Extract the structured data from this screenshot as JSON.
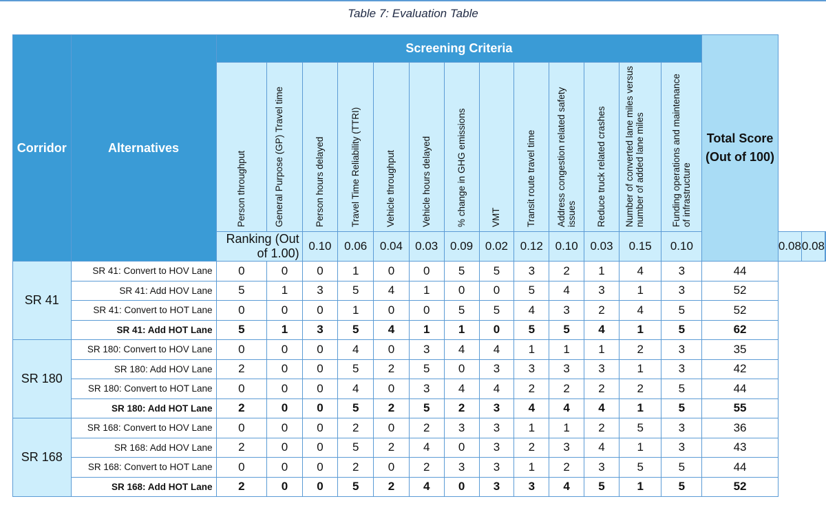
{
  "caption": "Table 7: Evaluation Table",
  "headers": {
    "corridor": "Corridor",
    "alternatives": "Alternatives",
    "screening_criteria": "Screening Criteria",
    "total_line1": "Total Score",
    "total_line2": "(Out of 100)"
  },
  "criteria": [
    "Person throughput",
    "General Purpose (GP) Travel time",
    "Person hours delayed",
    "Travel Time Reliability (TTRI)",
    "Vehicle throughput",
    "Vehicle hours delayed",
    "% change in GHG emissions",
    "VMT",
    "Transit route travel time",
    "Address congestion related safety issues",
    "Reduce truck related crashes",
    "Number of converted lane miles versus number of added lane miles",
    "Funding operations and maintenance of infrastructure"
  ],
  "ranking": {
    "label": "Ranking (Out of 1.00)",
    "values": [
      "0.10",
      "0.06",
      "0.04",
      "0.03",
      "0.09",
      "0.02",
      "0.12",
      "0.10",
      "0.03",
      "0.15",
      "0.10",
      "0.08",
      "0.08"
    ]
  },
  "corridors": [
    {
      "name": "SR 41",
      "rows": [
        {
          "alt": "SR 41: Convert to HOV Lane",
          "scores": [
            "0",
            "0",
            "0",
            "1",
            "0",
            "0",
            "5",
            "5",
            "3",
            "2",
            "1",
            "4",
            "3"
          ],
          "total": "44",
          "bold": false
        },
        {
          "alt": "SR 41: Add HOV Lane",
          "scores": [
            "5",
            "1",
            "3",
            "5",
            "4",
            "1",
            "0",
            "0",
            "5",
            "4",
            "3",
            "1",
            "3"
          ],
          "total": "52",
          "bold": false
        },
        {
          "alt": "SR 41: Convert to HOT Lane",
          "scores": [
            "0",
            "0",
            "0",
            "1",
            "0",
            "0",
            "5",
            "5",
            "4",
            "3",
            "2",
            "4",
            "5"
          ],
          "total": "52",
          "bold": false
        },
        {
          "alt": "SR 41: Add HOT Lane",
          "scores": [
            "5",
            "1",
            "3",
            "5",
            "4",
            "1",
            "1",
            "0",
            "5",
            "5",
            "4",
            "1",
            "5"
          ],
          "total": "62",
          "bold": true
        }
      ]
    },
    {
      "name": "SR 180",
      "rows": [
        {
          "alt": "SR 180: Convert to HOV Lane",
          "scores": [
            "0",
            "0",
            "0",
            "4",
            "0",
            "3",
            "4",
            "4",
            "1",
            "1",
            "1",
            "2",
            "3"
          ],
          "total": "35",
          "bold": false
        },
        {
          "alt": "SR 180: Add HOV Lane",
          "scores": [
            "2",
            "0",
            "0",
            "5",
            "2",
            "5",
            "0",
            "3",
            "3",
            "3",
            "3",
            "1",
            "3"
          ],
          "total": "42",
          "bold": false
        },
        {
          "alt": "SR 180: Convert to HOT Lane",
          "scores": [
            "0",
            "0",
            "0",
            "4",
            "0",
            "3",
            "4",
            "4",
            "2",
            "2",
            "2",
            "2",
            "5"
          ],
          "total": "44",
          "bold": false
        },
        {
          "alt": "SR 180: Add HOT Lane",
          "scores": [
            "2",
            "0",
            "0",
            "5",
            "2",
            "5",
            "2",
            "3",
            "4",
            "4",
            "4",
            "1",
            "5"
          ],
          "total": "55",
          "bold": true
        }
      ]
    },
    {
      "name": "SR 168",
      "rows": [
        {
          "alt": "SR 168: Convert to HOV Lane",
          "scores": [
            "0",
            "0",
            "0",
            "2",
            "0",
            "2",
            "3",
            "3",
            "1",
            "1",
            "2",
            "5",
            "3"
          ],
          "total": "36",
          "bold": false
        },
        {
          "alt": "SR 168: Add HOV Lane",
          "scores": [
            "2",
            "0",
            "0",
            "5",
            "2",
            "4",
            "0",
            "3",
            "2",
            "3",
            "4",
            "1",
            "3"
          ],
          "total": "43",
          "bold": false
        },
        {
          "alt": "SR 168: Convert to HOT Lane",
          "scores": [
            "0",
            "0",
            "0",
            "2",
            "0",
            "2",
            "3",
            "3",
            "1",
            "2",
            "3",
            "5",
            "5"
          ],
          "total": "44",
          "bold": false
        },
        {
          "alt": "SR 168: Add HOT Lane",
          "scores": [
            "2",
            "0",
            "0",
            "5",
            "2",
            "4",
            "0",
            "3",
            "3",
            "4",
            "5",
            "1",
            "5"
          ],
          "total": "52",
          "bold": true
        }
      ]
    }
  ]
}
